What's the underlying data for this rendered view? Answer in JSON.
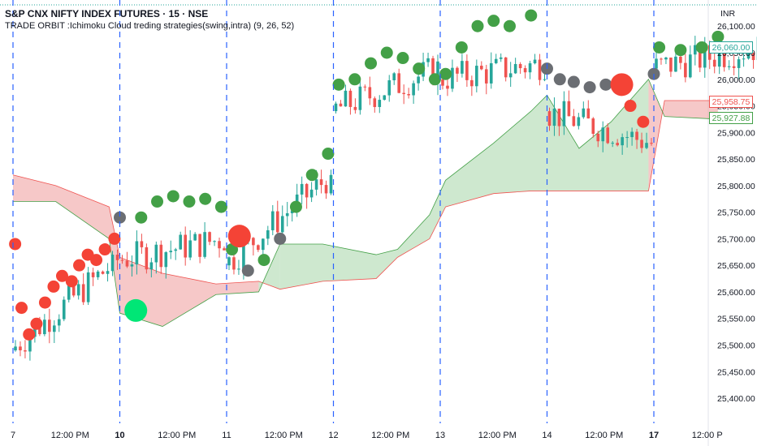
{
  "header": {
    "symbol_line": "S&P CNX NIFTY INDEX FUTURES · 15 · NSE",
    "indicator_line": "TRADE ORBIT :Ichimoku Cloud treding strategies(swing,intra) (9, 26, 52)",
    "currency": "INR"
  },
  "price_tags": {
    "last": {
      "label": "26,060.00",
      "value": 26060,
      "color": "#26a69a"
    },
    "cloud_red": {
      "label": "25,958.75",
      "value": 25958.75,
      "color": "#ef5350"
    },
    "cloud_green": {
      "label": "25,927.88",
      "value": 25927.88,
      "color": "#43a047"
    }
  },
  "chart_data": {
    "type": "candlestick",
    "y_axis": {
      "ticks": [
        25400,
        25450,
        25500,
        25550,
        25600,
        25650,
        25700,
        25750,
        25800,
        25850,
        25900,
        25950,
        26000,
        26050,
        26100
      ],
      "tick_labels": [
        "25,400.00",
        "25,450.00",
        "25,500.00",
        "25,550.00",
        "25,600.00",
        "25,650.00",
        "25,700.00",
        "25,750.00",
        "25,800.00",
        "25,850.00",
        "25,900.00",
        "25,950.00",
        "26,000.00",
        "26,050.00",
        "26,100.00"
      ],
      "ylim": [
        25365,
        26140
      ]
    },
    "x_axis": {
      "labels": [
        "7",
        "12:00 PM",
        "10",
        "12:00 PM",
        "11",
        "12:00 PM",
        "12",
        "12:00 PM",
        "13",
        "12:00 PM",
        "14",
        "12:00 PM",
        "17",
        "12:00 P"
      ],
      "bold_labels": [
        "10",
        "17"
      ],
      "session_index": [
        0,
        0.5,
        1,
        1.5,
        2,
        2.5,
        3,
        3.5,
        4,
        4.5,
        5,
        5.5,
        6,
        6.5
      ]
    },
    "sessions": [
      {
        "day": "7",
        "start": 25490,
        "end": 25660,
        "low": 25440,
        "high": 25680
      },
      {
        "day": "10",
        "start": 25660,
        "end": 25700,
        "low": 25610,
        "high": 25760
      },
      {
        "day": "11",
        "start": 25650,
        "end": 25820,
        "low": 25580,
        "high": 25830
      },
      {
        "day": "12",
        "start": 25940,
        "end": 26020,
        "low": 25900,
        "high": 26050
      },
      {
        "day": "13",
        "start": 26000,
        "end": 26030,
        "low": 25900,
        "high": 26100
      },
      {
        "day": "14",
        "start": 25940,
        "end": 25880,
        "low": 25820,
        "high": 26000
      },
      {
        "day": "17",
        "start": 26020,
        "end": 26060,
        "low": 25990,
        "high": 26090
      }
    ],
    "cloud": [
      {
        "x": 0.0,
        "a": 25820,
        "b": 25770
      },
      {
        "x": 0.4,
        "a": 25800,
        "b": 25770
      },
      {
        "x": 0.9,
        "a": 25760,
        "b": 25700
      },
      {
        "x": 1.0,
        "a": 25665,
        "b": 25560
      },
      {
        "x": 1.4,
        "a": 25635,
        "b": 25535
      },
      {
        "x": 1.9,
        "a": 25615,
        "b": 25595
      },
      {
        "x": 2.3,
        "a": 25620,
        "b": 25600
      },
      {
        "x": 2.5,
        "a": 25605,
        "b": 25690
      },
      {
        "x": 2.9,
        "a": 25620,
        "b": 25690
      },
      {
        "x": 3.4,
        "a": 25625,
        "b": 25670
      },
      {
        "x": 3.6,
        "a": 25665,
        "b": 25680
      },
      {
        "x": 3.9,
        "a": 25700,
        "b": 25745
      },
      {
        "x": 4.05,
        "a": 25760,
        "b": 25810
      },
      {
        "x": 4.5,
        "a": 25785,
        "b": 25880
      },
      {
        "x": 4.85,
        "a": 25790,
        "b": 25940
      },
      {
        "x": 5.0,
        "a": 25790,
        "b": 25970
      },
      {
        "x": 5.3,
        "a": 25790,
        "b": 25870
      },
      {
        "x": 5.6,
        "a": 25790,
        "b": 25920
      },
      {
        "x": 5.95,
        "a": 25790,
        "b": 26000
      },
      {
        "x": 6.1,
        "a": 25960,
        "b": 25930
      },
      {
        "x": 6.6,
        "a": 25960,
        "b": 25925
      }
    ],
    "bubbles": [
      {
        "x": 0.02,
        "y": 25690,
        "c": "red",
        "s": 1
      },
      {
        "x": 0.08,
        "y": 25570,
        "c": "red",
        "s": 1
      },
      {
        "x": 0.15,
        "y": 25520,
        "c": "red",
        "s": 1
      },
      {
        "x": 0.22,
        "y": 25540,
        "c": "red",
        "s": 1
      },
      {
        "x": 0.3,
        "y": 25580,
        "c": "red",
        "s": 1
      },
      {
        "x": 0.38,
        "y": 25610,
        "c": "red",
        "s": 1
      },
      {
        "x": 0.46,
        "y": 25630,
        "c": "red",
        "s": 1
      },
      {
        "x": 0.55,
        "y": 25620,
        "c": "red",
        "s": 1
      },
      {
        "x": 0.62,
        "y": 25650,
        "c": "red",
        "s": 1
      },
      {
        "x": 0.7,
        "y": 25670,
        "c": "red",
        "s": 1
      },
      {
        "x": 0.78,
        "y": 25660,
        "c": "red",
        "s": 1
      },
      {
        "x": 0.86,
        "y": 25680,
        "c": "red",
        "s": 1
      },
      {
        "x": 0.95,
        "y": 25700,
        "c": "red",
        "s": 1
      },
      {
        "x": 1.0,
        "y": 25740,
        "c": "gray",
        "s": 1
      },
      {
        "x": 1.15,
        "y": 25565,
        "c": "brightgreen",
        "s": 2
      },
      {
        "x": 1.2,
        "y": 25740,
        "c": "green",
        "s": 1
      },
      {
        "x": 1.35,
        "y": 25770,
        "c": "green",
        "s": 1
      },
      {
        "x": 1.5,
        "y": 25780,
        "c": "green",
        "s": 1
      },
      {
        "x": 1.65,
        "y": 25770,
        "c": "green",
        "s": 1
      },
      {
        "x": 1.8,
        "y": 25775,
        "c": "green",
        "s": 1
      },
      {
        "x": 1.95,
        "y": 25760,
        "c": "green",
        "s": 1
      },
      {
        "x": 2.05,
        "y": 25680,
        "c": "green",
        "s": 1
      },
      {
        "x": 2.12,
        "y": 25705,
        "c": "red",
        "s": 2
      },
      {
        "x": 2.2,
        "y": 25640,
        "c": "gray",
        "s": 1
      },
      {
        "x": 2.35,
        "y": 25660,
        "c": "green",
        "s": 1
      },
      {
        "x": 2.5,
        "y": 25700,
        "c": "gray",
        "s": 1
      },
      {
        "x": 2.65,
        "y": 25760,
        "c": "green",
        "s": 1
      },
      {
        "x": 2.8,
        "y": 25820,
        "c": "green",
        "s": 1
      },
      {
        "x": 2.95,
        "y": 25860,
        "c": "green",
        "s": 1
      },
      {
        "x": 3.05,
        "y": 25990,
        "c": "green",
        "s": 1
      },
      {
        "x": 3.2,
        "y": 26000,
        "c": "green",
        "s": 1
      },
      {
        "x": 3.35,
        "y": 26030,
        "c": "green",
        "s": 1
      },
      {
        "x": 3.5,
        "y": 26050,
        "c": "green",
        "s": 1
      },
      {
        "x": 3.65,
        "y": 26040,
        "c": "green",
        "s": 1
      },
      {
        "x": 3.8,
        "y": 26020,
        "c": "green",
        "s": 1
      },
      {
        "x": 3.95,
        "y": 26000,
        "c": "green",
        "s": 1
      },
      {
        "x": 4.05,
        "y": 26010,
        "c": "green",
        "s": 1
      },
      {
        "x": 4.2,
        "y": 26060,
        "c": "green",
        "s": 1
      },
      {
        "x": 4.35,
        "y": 26100,
        "c": "green",
        "s": 1
      },
      {
        "x": 4.5,
        "y": 26110,
        "c": "green",
        "s": 1
      },
      {
        "x": 4.65,
        "y": 26100,
        "c": "green",
        "s": 1
      },
      {
        "x": 4.85,
        "y": 26120,
        "c": "green",
        "s": 1
      },
      {
        "x": 5.0,
        "y": 26020,
        "c": "gray",
        "s": 1
      },
      {
        "x": 5.12,
        "y": 26000,
        "c": "gray",
        "s": 1
      },
      {
        "x": 5.25,
        "y": 25995,
        "c": "gray",
        "s": 1
      },
      {
        "x": 5.4,
        "y": 25985,
        "c": "gray",
        "s": 1
      },
      {
        "x": 5.55,
        "y": 25990,
        "c": "gray",
        "s": 1
      },
      {
        "x": 5.7,
        "y": 25990,
        "c": "red",
        "s": 2
      },
      {
        "x": 5.78,
        "y": 25950,
        "c": "red",
        "s": 1
      },
      {
        "x": 5.9,
        "y": 25920,
        "c": "red",
        "s": 1
      },
      {
        "x": 6.0,
        "y": 26010,
        "c": "gray",
        "s": 1
      },
      {
        "x": 6.05,
        "y": 26060,
        "c": "green",
        "s": 1
      },
      {
        "x": 6.25,
        "y": 26055,
        "c": "green",
        "s": 1
      },
      {
        "x": 6.45,
        "y": 26060,
        "c": "green",
        "s": 1
      },
      {
        "x": 6.6,
        "y": 26080,
        "c": "green",
        "s": 1
      }
    ],
    "vline_sessions": [
      0.0,
      1.0,
      2.0,
      3.0,
      4.0,
      5.0,
      6.0
    ],
    "colors": {
      "up": "#26a69a",
      "down": "#ef5350",
      "bubble_green": "#43a047",
      "bubble_red": "#f44336",
      "bubble_gray": "#6b6e73",
      "bubble_brightgreen": "#00e676",
      "cloud_green": "#a5d6a7",
      "cloud_red": "#ef9a9a",
      "session_line": "#2962ff"
    }
  }
}
